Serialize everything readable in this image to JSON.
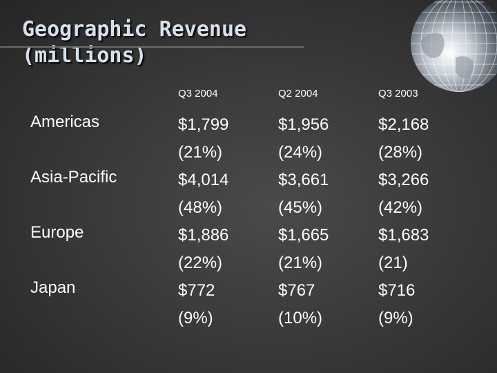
{
  "title": {
    "line1": "Geographic Revenue",
    "line2": "(millions)"
  },
  "columns": [
    "Q3 2004",
    "Q2 2004",
    "Q3 2003"
  ],
  "regions": [
    "Americas",
    "Asia-Pacific",
    "Europe",
    "Japan"
  ],
  "table": {
    "q3_2004": [
      "$1,799",
      "(21%)",
      "$4,014",
      "(48%)",
      "$1,886",
      "(22%)",
      "$772",
      "(9%)"
    ],
    "q2_2004": [
      "$1,956",
      "(24%)",
      "$3,661",
      "(45%)",
      "$1,665",
      "(21%)",
      "$767",
      "(10%)"
    ],
    "q3_2003": [
      "$2,168",
      "(28%)",
      "$3,266",
      "(42%)",
      "$1,683",
      "(21)",
      "$716",
      "(9%)"
    ]
  },
  "decoration": {
    "globe_icon": "globe-icon"
  }
}
